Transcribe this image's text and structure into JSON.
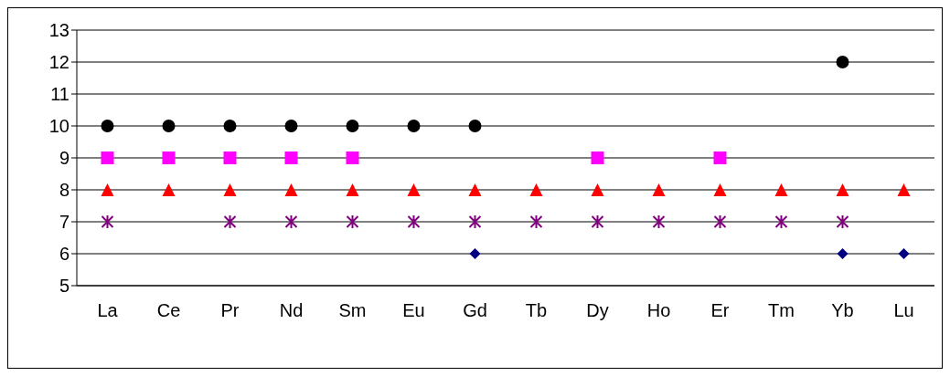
{
  "chart_data": {
    "type": "scatter",
    "categories": [
      "La",
      "Ce",
      "Pr",
      "Nd",
      "Sm",
      "Eu",
      "Gd",
      "Tb",
      "Dy",
      "Ho",
      "Er",
      "Tm",
      "Yb",
      "Lu"
    ],
    "series": [
      {
        "color": "#000000",
        "marker": "circle",
        "values": [
          10,
          10,
          10,
          10,
          10,
          10,
          10,
          null,
          null,
          null,
          null,
          null,
          12,
          null
        ]
      },
      {
        "color": "#ff00ff",
        "marker": "square",
        "values": [
          9,
          9,
          9,
          9,
          9,
          null,
          null,
          null,
          9,
          null,
          9,
          null,
          null,
          null
        ]
      },
      {
        "color": "#ff0000",
        "marker": "triangle",
        "values": [
          8,
          8,
          8,
          8,
          8,
          8,
          8,
          8,
          8,
          8,
          8,
          8,
          8,
          8
        ]
      },
      {
        "color": "#800080",
        "marker": "cross",
        "values": [
          7,
          null,
          7,
          7,
          7,
          7,
          7,
          7,
          7,
          7,
          7,
          7,
          7,
          null
        ]
      },
      {
        "color": "#000080",
        "marker": "diamond",
        "values": [
          null,
          null,
          null,
          null,
          null,
          null,
          6,
          null,
          null,
          null,
          null,
          null,
          6,
          6
        ]
      }
    ],
    "ylim": [
      5,
      13
    ],
    "yticks": [
      5,
      6,
      7,
      8,
      9,
      10,
      11,
      12,
      13
    ],
    "grid": "y",
    "legend": false
  }
}
